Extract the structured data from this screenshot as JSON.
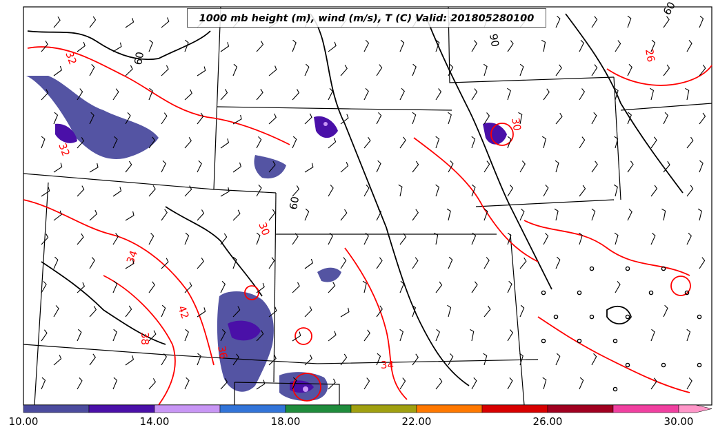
{
  "title": "1000 mb height (m), wind (m/s), T (C) Valid: 201805280100",
  "colorbar": {
    "tick_labels": [
      "10.00",
      "14.00",
      "18.00",
      "22.00",
      "26.00",
      "30.00"
    ],
    "bins": [
      {
        "from": 10,
        "to": 12,
        "color": "#4b4b9e"
      },
      {
        "from": 12,
        "to": 14,
        "color": "#4a10a8"
      },
      {
        "from": 14,
        "to": 16,
        "color": "#c896f5"
      },
      {
        "from": 16,
        "to": 18,
        "color": "#3274d8"
      },
      {
        "from": 18,
        "to": 20,
        "color": "#1f8c3c"
      },
      {
        "from": 20,
        "to": 22,
        "color": "#a0a010"
      },
      {
        "from": 22,
        "to": 24,
        "color": "#ff7800"
      },
      {
        "from": 24,
        "to": 26,
        "color": "#d70000"
      },
      {
        "from": 26,
        "to": 28,
        "color": "#a00020"
      },
      {
        "from": 28,
        "to": 30,
        "color": "#f040a0"
      },
      {
        "from": 30,
        "to": 32,
        "color": "#ff96c8"
      }
    ]
  },
  "temperature_contour_labels": [
    "32",
    "30",
    "26",
    "34",
    "42",
    "38",
    "36",
    "34",
    "32",
    "30"
  ],
  "height_contour_labels": [
    "60",
    "60",
    "60",
    "90"
  ],
  "colors": {
    "temperature_contour": "#ff0000",
    "height_contour": "#000000",
    "state_borders": "#000000"
  },
  "icons": [
    "wind-barb-icon",
    "calm-wind-circle-icon"
  ]
}
